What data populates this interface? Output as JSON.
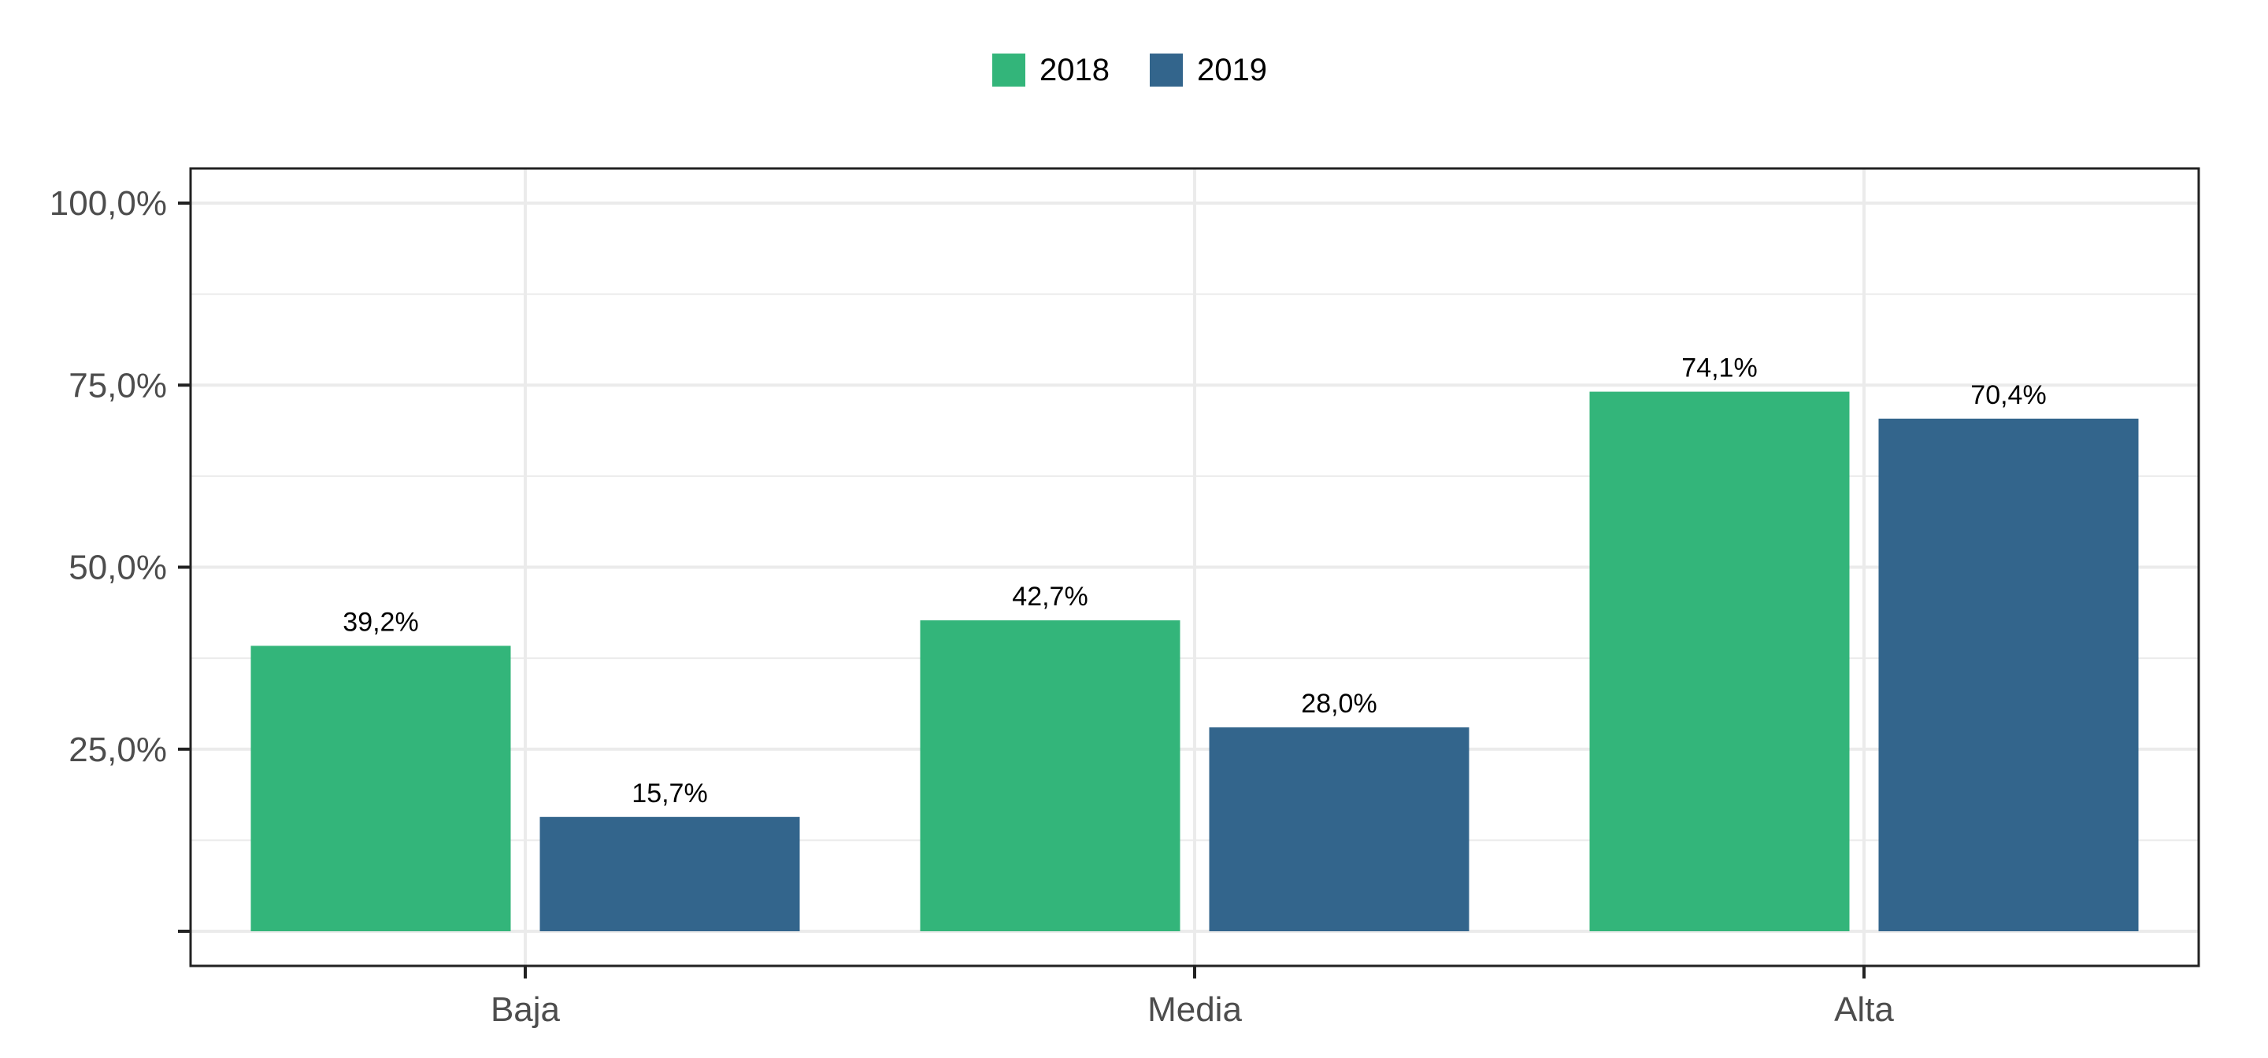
{
  "chart_data": {
    "type": "bar",
    "categories": [
      "Baja",
      "Media",
      "Alta"
    ],
    "series": [
      {
        "name": "2018",
        "color": "#33b57a",
        "values": [
          39.2,
          42.7,
          74.1
        ],
        "labels": [
          "39,2%",
          "42,7%",
          "74,1%"
        ]
      },
      {
        "name": "2019",
        "color": "#33658c",
        "values": [
          15.7,
          28.0,
          70.4
        ],
        "labels": [
          "15,7%",
          "28,0%",
          "70,4%"
        ]
      }
    ],
    "yticks": [
      25,
      50,
      75,
      100
    ],
    "ytick_labels": [
      "25,0%",
      "50,0%",
      "75,0%",
      "100,0%"
    ],
    "ylim": [
      0,
      104.6
    ],
    "grid": true,
    "legend_position": "top",
    "title": "",
    "xlabel": "",
    "ylabel": ""
  }
}
